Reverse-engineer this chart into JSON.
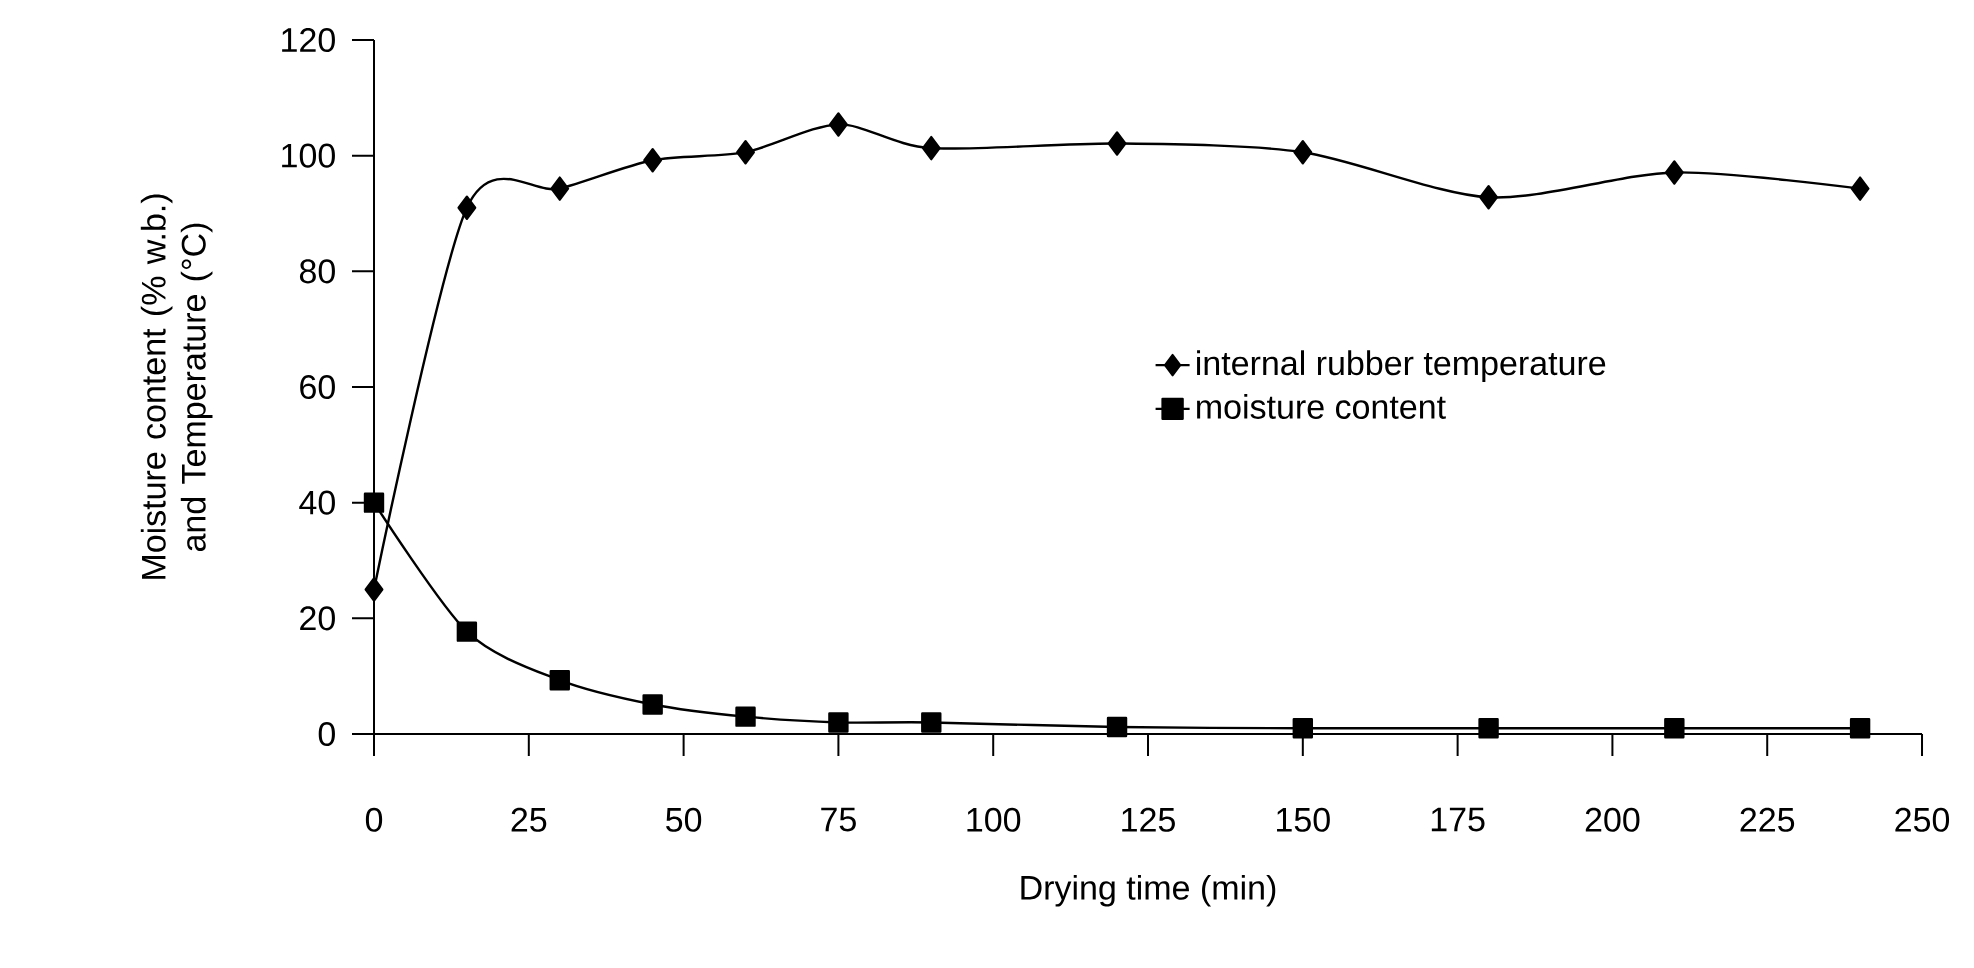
{
  "chart_data": {
    "type": "line",
    "xlabel": "Drying time (min)",
    "ylabel": "Moisture content (% w.b.) and Temperature (°C)",
    "x": [
      0,
      15,
      30,
      45,
      60,
      75,
      90,
      120,
      150,
      180,
      210,
      240
    ],
    "series": [
      {
        "name": "internal rubber temperature",
        "color": "#000000",
        "marker": "diamond",
        "values": [
          25,
          91,
          94.3,
          99.2,
          100.6,
          105.4,
          101.3,
          102.1,
          100.6,
          92.8,
          97.1,
          94.3
        ]
      },
      {
        "name": "moisture content",
        "color": "#000000",
        "marker": "square",
        "values": [
          40,
          17.7,
          9.3,
          5.1,
          3.0,
          2.0,
          2.0,
          1.2,
          1.0,
          1.0,
          1.0,
          1.0
        ]
      }
    ],
    "xlim": [
      0,
      250
    ],
    "xticks": [
      0,
      25,
      50,
      75,
      100,
      125,
      150,
      175,
      200,
      225,
      250
    ],
    "ylim": [
      0,
      120
    ],
    "yticks": [
      0,
      20,
      40,
      60,
      80,
      100,
      120
    ],
    "grid": false,
    "legend": "right",
    "line_style": "solid"
  }
}
